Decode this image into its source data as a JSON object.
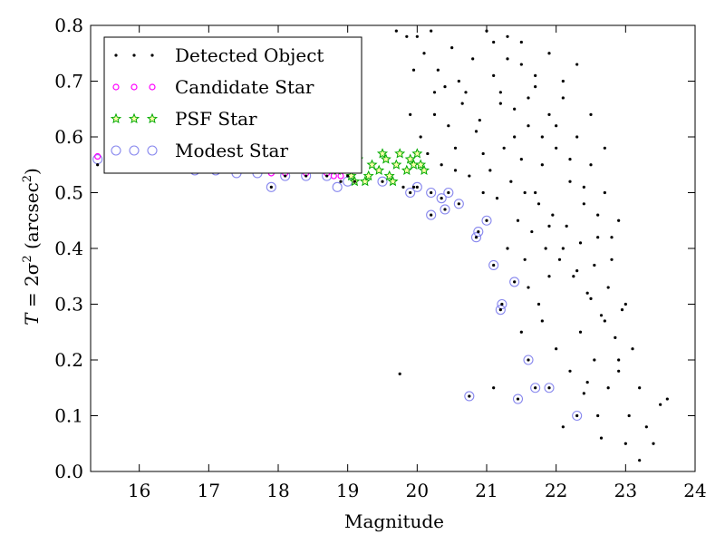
{
  "chart_data": {
    "type": "scatter",
    "title": "",
    "xlabel": "Magnitude",
    "ylabel": "T = 2σ² (arcsec²)",
    "ylabel_parts": {
      "lhs": "T",
      "eq": " = 2σ",
      "sup": "2",
      "rest": " (arcsec",
      "rsup": "2",
      "close": ")"
    },
    "xlim": [
      15.3,
      24
    ],
    "ylim": [
      0.0,
      0.8
    ],
    "xticks": [
      "16",
      "17",
      "18",
      "19",
      "20",
      "21",
      "22",
      "23",
      "24"
    ],
    "yticks": [
      "0.0",
      "0.1",
      "0.2",
      "0.3",
      "0.4",
      "0.5",
      "0.6",
      "0.7",
      "0.8"
    ],
    "grid": false,
    "legend_position": "top-left",
    "series": [
      {
        "name": "Detected Object",
        "marker": "dot",
        "color": "#000000",
        "points": [
          [
            15.4,
            0.55
          ],
          [
            15.6,
            0.56
          ],
          [
            15.9,
            0.55
          ],
          [
            16.2,
            0.55
          ],
          [
            16.5,
            0.55
          ],
          [
            16.8,
            0.55
          ],
          [
            17.1,
            0.54
          ],
          [
            17.4,
            0.54
          ],
          [
            17.7,
            0.54
          ],
          [
            17.9,
            0.51
          ],
          [
            18.1,
            0.53
          ],
          [
            18.4,
            0.53
          ],
          [
            18.7,
            0.53
          ],
          [
            18.9,
            0.52
          ],
          [
            19.0,
            0.53
          ],
          [
            19.1,
            0.52
          ],
          [
            19.5,
            0.52
          ],
          [
            19.8,
            0.51
          ],
          [
            19.9,
            0.5
          ],
          [
            19.95,
            0.51
          ],
          [
            20.0,
            0.51
          ],
          [
            20.2,
            0.5
          ],
          [
            20.2,
            0.46
          ],
          [
            20.35,
            0.49
          ],
          [
            20.4,
            0.47
          ],
          [
            20.45,
            0.5
          ],
          [
            20.6,
            0.48
          ],
          [
            20.85,
            0.42
          ],
          [
            20.88,
            0.43
          ],
          [
            21.0,
            0.45
          ],
          [
            21.1,
            0.37
          ],
          [
            21.2,
            0.29
          ],
          [
            21.22,
            0.3
          ],
          [
            21.4,
            0.34
          ],
          [
            21.6,
            0.2
          ],
          [
            21.7,
            0.15
          ],
          [
            21.9,
            0.15
          ],
          [
            21.45,
            0.13
          ],
          [
            20.75,
            0.135
          ],
          [
            19.75,
            0.175
          ],
          [
            22.3,
            0.1
          ],
          [
            20.0,
            0.78
          ],
          [
            20.1,
            0.75
          ],
          [
            20.2,
            0.79
          ],
          [
            20.3,
            0.72
          ],
          [
            20.4,
            0.69
          ],
          [
            20.5,
            0.76
          ],
          [
            20.6,
            0.7
          ],
          [
            20.7,
            0.68
          ],
          [
            20.8,
            0.74
          ],
          [
            20.9,
            0.63
          ],
          [
            21.0,
            0.79
          ],
          [
            21.1,
            0.71
          ],
          [
            21.2,
            0.66
          ],
          [
            21.3,
            0.78
          ],
          [
            21.4,
            0.6
          ],
          [
            21.5,
            0.73
          ],
          [
            21.6,
            0.62
          ],
          [
            21.7,
            0.69
          ],
          [
            21.8,
            0.55
          ],
          [
            21.9,
            0.64
          ],
          [
            22.0,
            0.58
          ],
          [
            22.1,
            0.67
          ],
          [
            22.2,
            0.52
          ],
          [
            22.3,
            0.6
          ],
          [
            22.4,
            0.48
          ],
          [
            22.5,
            0.55
          ],
          [
            22.6,
            0.42
          ],
          [
            22.7,
            0.5
          ],
          [
            22.8,
            0.38
          ],
          [
            22.9,
            0.45
          ],
          [
            23.0,
            0.3
          ],
          [
            23.1,
            0.22
          ],
          [
            23.2,
            0.15
          ],
          [
            23.3,
            0.08
          ],
          [
            23.4,
            0.05
          ],
          [
            23.5,
            0.12
          ],
          [
            23.6,
            0.13
          ],
          [
            23.0,
            0.05
          ],
          [
            23.2,
            0.02
          ],
          [
            22.9,
            0.18
          ],
          [
            20.05,
            0.6
          ],
          [
            20.15,
            0.57
          ],
          [
            20.25,
            0.64
          ],
          [
            20.35,
            0.55
          ],
          [
            20.45,
            0.62
          ],
          [
            20.55,
            0.58
          ],
          [
            20.65,
            0.66
          ],
          [
            20.75,
            0.53
          ],
          [
            20.85,
            0.61
          ],
          [
            20.95,
            0.57
          ],
          [
            21.05,
            0.54
          ],
          [
            21.15,
            0.49
          ],
          [
            21.25,
            0.58
          ],
          [
            21.35,
            0.52
          ],
          [
            21.45,
            0.45
          ],
          [
            21.55,
            0.5
          ],
          [
            21.65,
            0.43
          ],
          [
            21.75,
            0.48
          ],
          [
            21.85,
            0.4
          ],
          [
            21.95,
            0.46
          ],
          [
            22.05,
            0.38
          ],
          [
            22.15,
            0.44
          ],
          [
            22.25,
            0.35
          ],
          [
            22.35,
            0.41
          ],
          [
            22.45,
            0.32
          ],
          [
            22.55,
            0.37
          ],
          [
            22.65,
            0.28
          ],
          [
            22.75,
            0.33
          ],
          [
            22.85,
            0.24
          ],
          [
            22.95,
            0.29
          ],
          [
            21.1,
            0.77
          ],
          [
            21.3,
            0.74
          ],
          [
            21.5,
            0.77
          ],
          [
            21.7,
            0.71
          ],
          [
            21.9,
            0.75
          ],
          [
            22.1,
            0.7
          ],
          [
            22.3,
            0.73
          ],
          [
            22.5,
            0.64
          ],
          [
            22.7,
            0.58
          ],
          [
            21.2,
            0.68
          ],
          [
            21.4,
            0.65
          ],
          [
            21.6,
            0.67
          ],
          [
            21.8,
            0.6
          ],
          [
            22.0,
            0.62
          ],
          [
            22.2,
            0.56
          ],
          [
            22.4,
            0.51
          ],
          [
            22.6,
            0.46
          ],
          [
            22.8,
            0.42
          ],
          [
            21.5,
            0.56
          ],
          [
            21.7,
            0.5
          ],
          [
            21.9,
            0.44
          ],
          [
            22.1,
            0.4
          ],
          [
            22.3,
            0.36
          ],
          [
            22.5,
            0.31
          ],
          [
            22.7,
            0.27
          ],
          [
            22.9,
            0.2
          ],
          [
            21.3,
            0.4
          ],
          [
            21.6,
            0.33
          ],
          [
            21.8,
            0.27
          ],
          [
            22.0,
            0.22
          ],
          [
            22.2,
            0.18
          ],
          [
            22.4,
            0.14
          ],
          [
            22.6,
            0.1
          ],
          [
            22.1,
            0.08
          ],
          [
            21.1,
            0.15
          ],
          [
            21.5,
            0.25
          ],
          [
            21.9,
            0.35
          ],
          [
            22.35,
            0.25
          ],
          [
            22.55,
            0.2
          ],
          [
            22.75,
            0.15
          ],
          [
            23.05,
            0.1
          ],
          [
            22.65,
            0.06
          ],
          [
            22.45,
            0.16
          ],
          [
            21.75,
            0.3
          ],
          [
            21.55,
            0.38
          ],
          [
            20.95,
            0.5
          ],
          [
            20.55,
            0.54
          ],
          [
            20.25,
            0.68
          ],
          [
            19.95,
            0.72
          ],
          [
            19.85,
            0.78
          ],
          [
            19.7,
            0.79
          ],
          [
            19.9,
            0.64
          ]
        ]
      },
      {
        "name": "Candidate Star",
        "marker": "circle",
        "color": "#ff00ff",
        "points": [
          [
            15.4,
            0.565
          ],
          [
            15.6,
            0.56
          ],
          [
            15.9,
            0.55
          ],
          [
            16.2,
            0.55
          ],
          [
            16.5,
            0.55
          ],
          [
            16.8,
            0.545
          ],
          [
            17.1,
            0.545
          ],
          [
            17.4,
            0.54
          ],
          [
            17.7,
            0.54
          ],
          [
            17.9,
            0.535
          ],
          [
            18.1,
            0.535
          ],
          [
            18.4,
            0.535
          ],
          [
            18.7,
            0.535
          ],
          [
            18.9,
            0.53
          ],
          [
            19.1,
            0.55
          ],
          [
            19.15,
            0.57
          ],
          [
            16.0,
            0.56
          ],
          [
            16.6,
            0.55
          ],
          [
            17.3,
            0.55
          ],
          [
            18.2,
            0.54
          ],
          [
            18.5,
            0.54
          ],
          [
            18.8,
            0.53
          ]
        ]
      },
      {
        "name": "PSF Star",
        "marker": "star",
        "color": "#00aa00",
        "points": [
          [
            18.85,
            0.54
          ],
          [
            18.95,
            0.55
          ],
          [
            19.05,
            0.53
          ],
          [
            19.15,
            0.56
          ],
          [
            19.25,
            0.52
          ],
          [
            19.35,
            0.55
          ],
          [
            19.45,
            0.54
          ],
          [
            19.55,
            0.56
          ],
          [
            19.6,
            0.53
          ],
          [
            19.7,
            0.55
          ],
          [
            19.75,
            0.57
          ],
          [
            19.85,
            0.54
          ],
          [
            19.9,
            0.56
          ],
          [
            19.95,
            0.55
          ],
          [
            20.0,
            0.57
          ],
          [
            20.05,
            0.55
          ],
          [
            20.1,
            0.54
          ],
          [
            19.5,
            0.57
          ],
          [
            19.3,
            0.53
          ],
          [
            19.1,
            0.52
          ],
          [
            19.65,
            0.52
          ]
        ]
      },
      {
        "name": "Modest Star",
        "marker": "open-circle",
        "color": "#8888ee",
        "points": [
          [
            15.4,
            0.56
          ],
          [
            15.6,
            0.555
          ],
          [
            15.9,
            0.545
          ],
          [
            16.2,
            0.545
          ],
          [
            16.5,
            0.545
          ],
          [
            16.8,
            0.54
          ],
          [
            17.1,
            0.54
          ],
          [
            17.4,
            0.535
          ],
          [
            17.7,
            0.535
          ],
          [
            17.9,
            0.51
          ],
          [
            18.1,
            0.53
          ],
          [
            18.4,
            0.53
          ],
          [
            18.7,
            0.53
          ],
          [
            18.85,
            0.51
          ],
          [
            19.0,
            0.52
          ],
          [
            19.5,
            0.52
          ],
          [
            19.9,
            0.5
          ],
          [
            20.0,
            0.51
          ],
          [
            20.2,
            0.5
          ],
          [
            20.2,
            0.46
          ],
          [
            20.35,
            0.49
          ],
          [
            20.4,
            0.47
          ],
          [
            20.45,
            0.5
          ],
          [
            20.6,
            0.48
          ],
          [
            20.85,
            0.42
          ],
          [
            20.88,
            0.43
          ],
          [
            21.0,
            0.45
          ],
          [
            21.1,
            0.37
          ],
          [
            21.2,
            0.29
          ],
          [
            21.22,
            0.3
          ],
          [
            21.4,
            0.34
          ],
          [
            21.6,
            0.2
          ],
          [
            21.7,
            0.15
          ],
          [
            21.9,
            0.15
          ],
          [
            21.45,
            0.13
          ],
          [
            20.75,
            0.135
          ],
          [
            22.3,
            0.1
          ]
        ]
      }
    ]
  }
}
